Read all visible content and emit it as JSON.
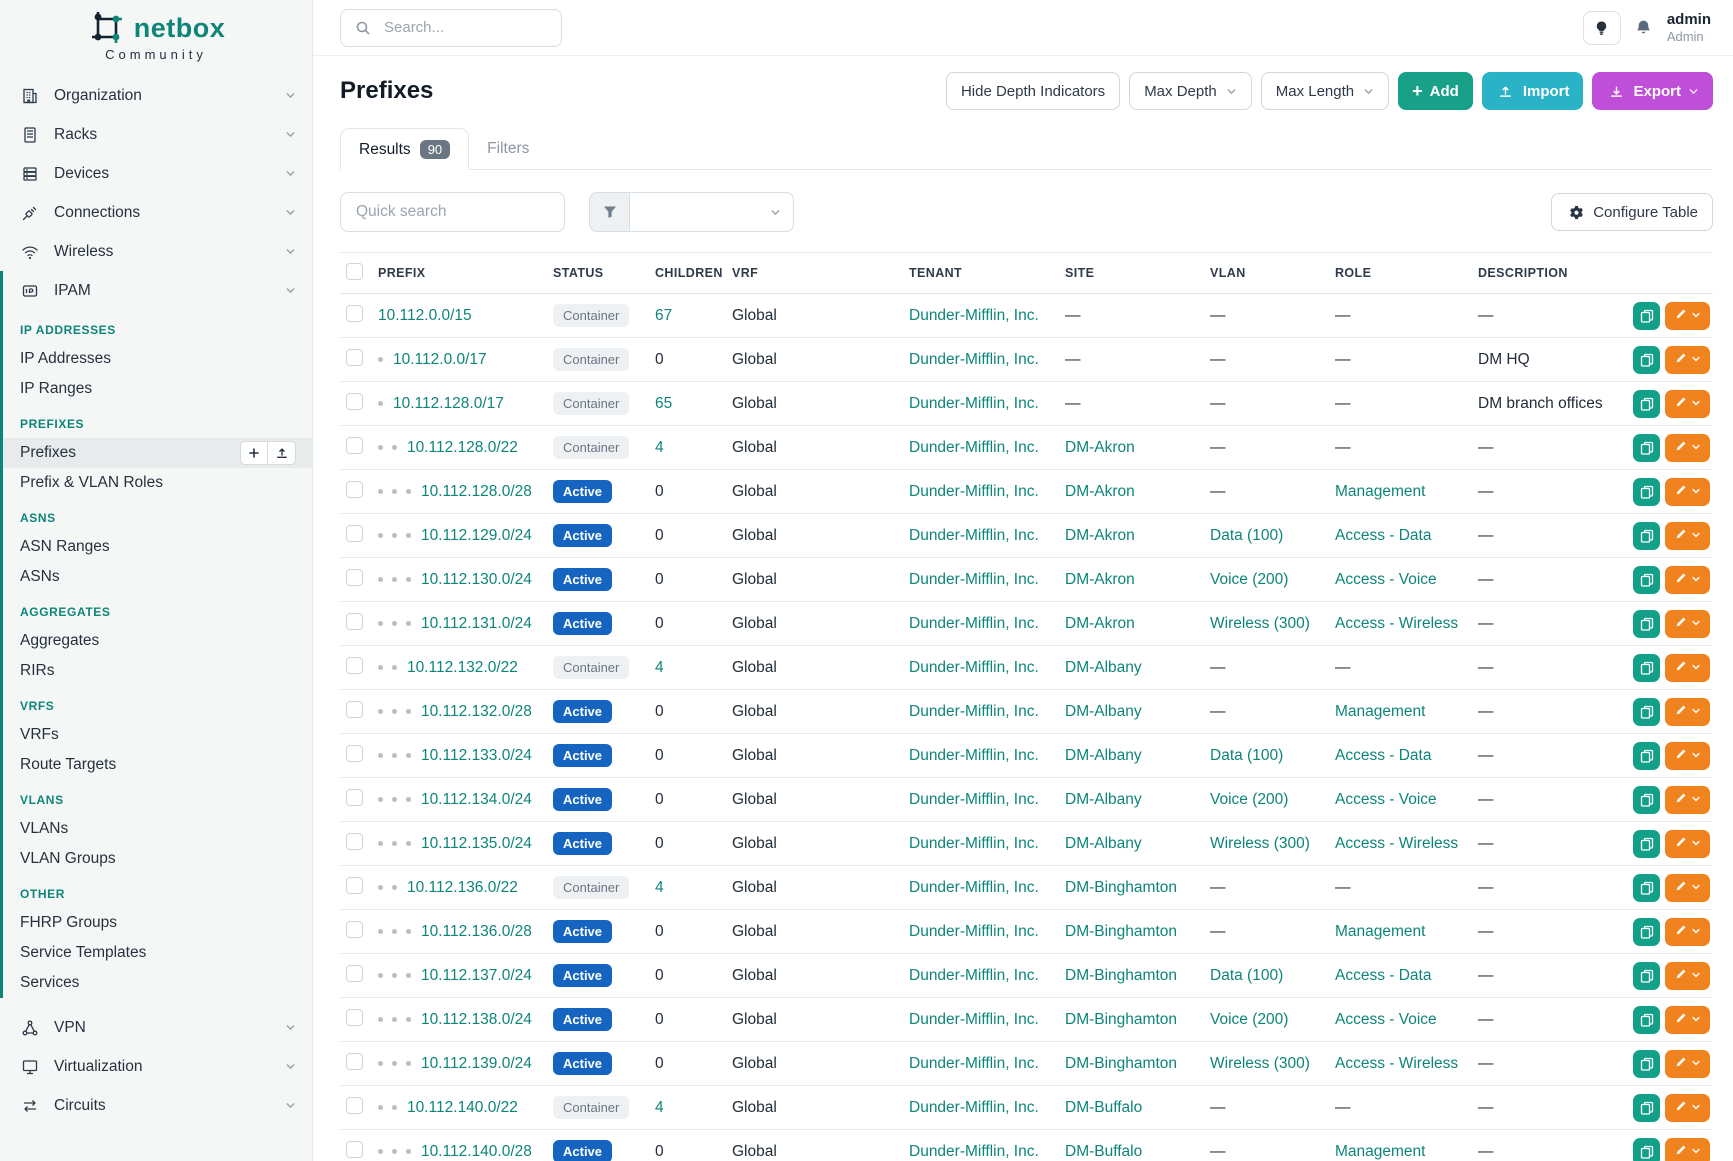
{
  "brand": {
    "name": "netbox",
    "edition": "Community"
  },
  "topbar": {
    "search_placeholder": "Search...",
    "user": {
      "name": "admin",
      "role": "Admin"
    }
  },
  "sidebar": {
    "top_items": [
      {
        "label": "Organization",
        "icon": "building"
      },
      {
        "label": "Racks",
        "icon": "rack"
      },
      {
        "label": "Devices",
        "icon": "devices"
      },
      {
        "label": "Connections",
        "icon": "connections"
      },
      {
        "label": "Wireless",
        "icon": "wireless"
      }
    ],
    "ipam_item": {
      "label": "IPAM",
      "icon": "ipam"
    },
    "ipam_groups": [
      {
        "header": "IP ADDRESSES",
        "items": [
          "IP Addresses",
          "IP Ranges"
        ]
      },
      {
        "header": "PREFIXES",
        "items": [
          "Prefixes",
          "Prefix & VLAN Roles"
        ]
      },
      {
        "header": "ASNS",
        "items": [
          "ASN Ranges",
          "ASNs"
        ]
      },
      {
        "header": "AGGREGATES",
        "items": [
          "Aggregates",
          "RIRs"
        ]
      },
      {
        "header": "VRFS",
        "items": [
          "VRFs",
          "Route Targets"
        ]
      },
      {
        "header": "VLANS",
        "items": [
          "VLANs",
          "VLAN Groups"
        ]
      },
      {
        "header": "OTHER",
        "items": [
          "FHRP Groups",
          "Service Templates",
          "Services"
        ]
      }
    ],
    "active_item": "Prefixes",
    "bottom_items": [
      {
        "label": "VPN",
        "icon": "vpn"
      },
      {
        "label": "Virtualization",
        "icon": "virtualization"
      },
      {
        "label": "Circuits",
        "icon": "circuits"
      }
    ]
  },
  "page": {
    "title": "Prefixes",
    "toolbar": {
      "hide_depth": "Hide Depth Indicators",
      "max_depth": "Max Depth",
      "max_length": "Max Length",
      "add": "Add",
      "import": "Import",
      "export": "Export"
    },
    "tabs": {
      "results": "Results",
      "results_count": "90",
      "filters": "Filters"
    },
    "quick_search_placeholder": "Quick search",
    "configure_table": "Configure Table"
  },
  "table": {
    "columns": [
      "PREFIX",
      "STATUS",
      "CHILDREN",
      "VRF",
      "TENANT",
      "SITE",
      "VLAN",
      "ROLE",
      "DESCRIPTION"
    ],
    "rows": [
      {
        "depth": 0,
        "prefix": "10.112.0.0/15",
        "status": "Container",
        "children": "67",
        "vrf": "Global",
        "tenant": "Dunder-Mifflin, Inc.",
        "site": "—",
        "vlan": "—",
        "role": "—",
        "description": "—"
      },
      {
        "depth": 1,
        "prefix": "10.112.0.0/17",
        "status": "Container",
        "children": "0",
        "vrf": "Global",
        "tenant": "Dunder-Mifflin, Inc.",
        "site": "—",
        "vlan": "—",
        "role": "—",
        "description": "DM HQ"
      },
      {
        "depth": 1,
        "prefix": "10.112.128.0/17",
        "status": "Container",
        "children": "65",
        "vrf": "Global",
        "tenant": "Dunder-Mifflin, Inc.",
        "site": "—",
        "vlan": "—",
        "role": "—",
        "description": "DM branch offices"
      },
      {
        "depth": 2,
        "prefix": "10.112.128.0/22",
        "status": "Container",
        "children": "4",
        "vrf": "Global",
        "tenant": "Dunder-Mifflin, Inc.",
        "site": "DM-Akron",
        "vlan": "—",
        "role": "—",
        "description": "—"
      },
      {
        "depth": 3,
        "prefix": "10.112.128.0/28",
        "status": "Active",
        "children": "0",
        "vrf": "Global",
        "tenant": "Dunder-Mifflin, Inc.",
        "site": "DM-Akron",
        "vlan": "—",
        "role": "Management",
        "description": "—"
      },
      {
        "depth": 3,
        "prefix": "10.112.129.0/24",
        "status": "Active",
        "children": "0",
        "vrf": "Global",
        "tenant": "Dunder-Mifflin, Inc.",
        "site": "DM-Akron",
        "vlan": "Data (100)",
        "role": "Access - Data",
        "description": "—"
      },
      {
        "depth": 3,
        "prefix": "10.112.130.0/24",
        "status": "Active",
        "children": "0",
        "vrf": "Global",
        "tenant": "Dunder-Mifflin, Inc.",
        "site": "DM-Akron",
        "vlan": "Voice (200)",
        "role": "Access - Voice",
        "description": "—"
      },
      {
        "depth": 3,
        "prefix": "10.112.131.0/24",
        "status": "Active",
        "children": "0",
        "vrf": "Global",
        "tenant": "Dunder-Mifflin, Inc.",
        "site": "DM-Akron",
        "vlan": "Wireless (300)",
        "role": "Access - Wireless",
        "description": "—"
      },
      {
        "depth": 2,
        "prefix": "10.112.132.0/22",
        "status": "Container",
        "children": "4",
        "vrf": "Global",
        "tenant": "Dunder-Mifflin, Inc.",
        "site": "DM-Albany",
        "vlan": "—",
        "role": "—",
        "description": "—"
      },
      {
        "depth": 3,
        "prefix": "10.112.132.0/28",
        "status": "Active",
        "children": "0",
        "vrf": "Global",
        "tenant": "Dunder-Mifflin, Inc.",
        "site": "DM-Albany",
        "vlan": "—",
        "role": "Management",
        "description": "—"
      },
      {
        "depth": 3,
        "prefix": "10.112.133.0/24",
        "status": "Active",
        "children": "0",
        "vrf": "Global",
        "tenant": "Dunder-Mifflin, Inc.",
        "site": "DM-Albany",
        "vlan": "Data (100)",
        "role": "Access - Data",
        "description": "—"
      },
      {
        "depth": 3,
        "prefix": "10.112.134.0/24",
        "status": "Active",
        "children": "0",
        "vrf": "Global",
        "tenant": "Dunder-Mifflin, Inc.",
        "site": "DM-Albany",
        "vlan": "Voice (200)",
        "role": "Access - Voice",
        "description": "—"
      },
      {
        "depth": 3,
        "prefix": "10.112.135.0/24",
        "status": "Active",
        "children": "0",
        "vrf": "Global",
        "tenant": "Dunder-Mifflin, Inc.",
        "site": "DM-Albany",
        "vlan": "Wireless (300)",
        "role": "Access - Wireless",
        "description": "—"
      },
      {
        "depth": 2,
        "prefix": "10.112.136.0/22",
        "status": "Container",
        "children": "4",
        "vrf": "Global",
        "tenant": "Dunder-Mifflin, Inc.",
        "site": "DM-Binghamton",
        "vlan": "—",
        "role": "—",
        "description": "—"
      },
      {
        "depth": 3,
        "prefix": "10.112.136.0/28",
        "status": "Active",
        "children": "0",
        "vrf": "Global",
        "tenant": "Dunder-Mifflin, Inc.",
        "site": "DM-Binghamton",
        "vlan": "—",
        "role": "Management",
        "description": "—"
      },
      {
        "depth": 3,
        "prefix": "10.112.137.0/24",
        "status": "Active",
        "children": "0",
        "vrf": "Global",
        "tenant": "Dunder-Mifflin, Inc.",
        "site": "DM-Binghamton",
        "vlan": "Data (100)",
        "role": "Access - Data",
        "description": "—"
      },
      {
        "depth": 3,
        "prefix": "10.112.138.0/24",
        "status": "Active",
        "children": "0",
        "vrf": "Global",
        "tenant": "Dunder-Mifflin, Inc.",
        "site": "DM-Binghamton",
        "vlan": "Voice (200)",
        "role": "Access - Voice",
        "description": "—"
      },
      {
        "depth": 3,
        "prefix": "10.112.139.0/24",
        "status": "Active",
        "children": "0",
        "vrf": "Global",
        "tenant": "Dunder-Mifflin, Inc.",
        "site": "DM-Binghamton",
        "vlan": "Wireless (300)",
        "role": "Access - Wireless",
        "description": "—"
      },
      {
        "depth": 2,
        "prefix": "10.112.140.0/22",
        "status": "Container",
        "children": "4",
        "vrf": "Global",
        "tenant": "Dunder-Mifflin, Inc.",
        "site": "DM-Buffalo",
        "vlan": "—",
        "role": "—",
        "description": "—"
      },
      {
        "depth": 3,
        "prefix": "10.112.140.0/28",
        "status": "Active",
        "children": "0",
        "vrf": "Global",
        "tenant": "Dunder-Mifflin, Inc.",
        "site": "DM-Buffalo",
        "vlan": "—",
        "role": "Management",
        "description": "—"
      }
    ]
  },
  "colors": {
    "brand_teal": "#0e8578",
    "active_badge_blue": "#1565c0",
    "container_badge_bg": "#eef1f4",
    "add_button": "#18a089",
    "import_button": "#2ab2c6",
    "export_button": "#bf4fd8",
    "edit_button": "#f1831f",
    "copy_button": "#12a089"
  }
}
